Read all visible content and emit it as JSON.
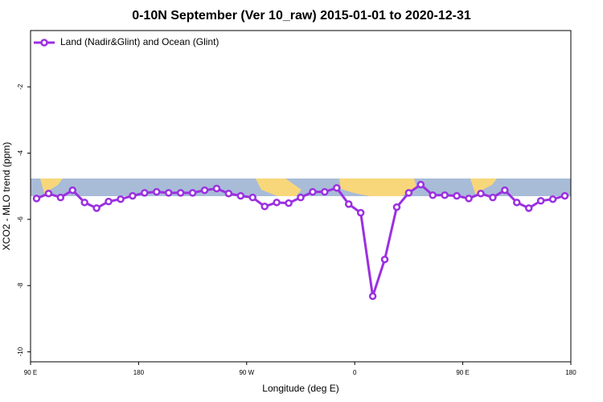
{
  "chart_data": {
    "type": "line",
    "title": "0-10N September (Ver 10_raw)   2015-01-01 to 2020-12-31",
    "x_label": "Longitude (deg E)",
    "y_label": "XCO2 - MLO trend (ppm)",
    "x": [
      95,
      105,
      115,
      125,
      135,
      145,
      155,
      165,
      175,
      185,
      195,
      205,
      215,
      225,
      235,
      245,
      255,
      265,
      275,
      285,
      295,
      305,
      315,
      325,
      335,
      345,
      355,
      365,
      375,
      385,
      395,
      405,
      415,
      425,
      435,
      445,
      455,
      465,
      475,
      485,
      495,
      505,
      515,
      525,
      535
    ],
    "series": [
      {
        "name": "Land (Nadir&Glint) and Ocean (Glint)",
        "color": "#9b30e0",
        "values": [
          -5.37,
          -5.22,
          -5.34,
          -5.12,
          -5.49,
          -5.66,
          -5.46,
          -5.39,
          -5.29,
          -5.2,
          -5.17,
          -5.2,
          -5.2,
          -5.2,
          -5.12,
          -5.07,
          -5.22,
          -5.29,
          -5.34,
          -5.61,
          -5.49,
          -5.51,
          -5.34,
          -5.17,
          -5.17,
          -5.05,
          -5.54,
          -5.8,
          -8.32,
          -7.21,
          -5.63,
          -5.2,
          -4.95,
          -5.27,
          -5.27,
          -5.29,
          -5.37,
          -5.22,
          -5.34,
          -5.12,
          -5.49,
          -5.66,
          -5.44,
          -5.39,
          -5.29
        ]
      }
    ],
    "xlim": [
      90,
      540
    ],
    "xticks": [
      {
        "value": 90,
        "label": "90 E"
      },
      {
        "value": 180,
        "label": "180"
      },
      {
        "value": 270,
        "label": "90 W"
      },
      {
        "value": 360,
        "label": "0"
      },
      {
        "value": 450,
        "label": "90 E"
      },
      {
        "value": 540,
        "label": "180"
      }
    ],
    "ylim": [
      -10.3,
      -0.3
    ],
    "yticks": [
      -2,
      -4,
      -6,
      -8,
      -10
    ],
    "legend": "top-left"
  }
}
